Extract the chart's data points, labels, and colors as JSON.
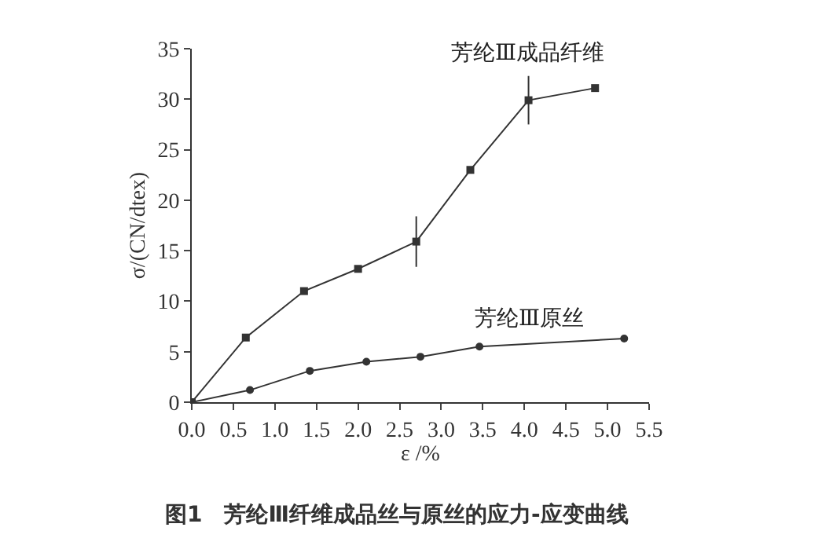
{
  "chart_data": {
    "type": "line",
    "title": "图1　芳纶Ⅲ纤维成品丝与原丝的应力-应变曲线",
    "xlabel": "ε /%",
    "ylabel": "σ/(CN/dtex)",
    "xlim": [
      0,
      5.5
    ],
    "xticks": [
      {
        "value": 0,
        "label": "0.0"
      },
      {
        "value": 0.5,
        "label": "0.5"
      },
      {
        "value": 1,
        "label": "1.0"
      },
      {
        "value": 1.5,
        "label": "1.5"
      },
      {
        "value": 2,
        "label": "2.0"
      },
      {
        "value": 2.5,
        "label": "2.5"
      },
      {
        "value": 3,
        "label": "3.0"
      },
      {
        "value": 3.5,
        "label": "3.5"
      },
      {
        "value": 4,
        "label": "4.0"
      },
      {
        "value": 4.5,
        "label": "4.5"
      },
      {
        "value": 5,
        "label": "5.0"
      },
      {
        "value": 5.5,
        "label": "5.5"
      }
    ],
    "ylim": [
      0,
      35
    ],
    "yticks": [
      0,
      5,
      10,
      15,
      20,
      25,
      30,
      35
    ],
    "series": [
      {
        "name": "芳纶Ⅲ成品纤维",
        "color": "#333333",
        "marker": "square",
        "x": [
          0,
          0.65,
          1.35,
          2.0,
          2.7,
          3.35,
          4.05,
          4.85
        ],
        "values": [
          0,
          6.4,
          11.0,
          13.2,
          15.9,
          23.0,
          29.9,
          31.1
        ],
        "errors": [
          null,
          null,
          null,
          null,
          2.5,
          null,
          2.4,
          null
        ]
      },
      {
        "name": "芳纶Ⅲ原丝",
        "color": "#333333",
        "marker": "circle",
        "x": [
          0,
          0.7,
          1.42,
          2.1,
          2.75,
          3.46,
          5.2
        ],
        "values": [
          0,
          1.2,
          3.1,
          4.0,
          4.5,
          5.5,
          6.3
        ]
      }
    ]
  }
}
